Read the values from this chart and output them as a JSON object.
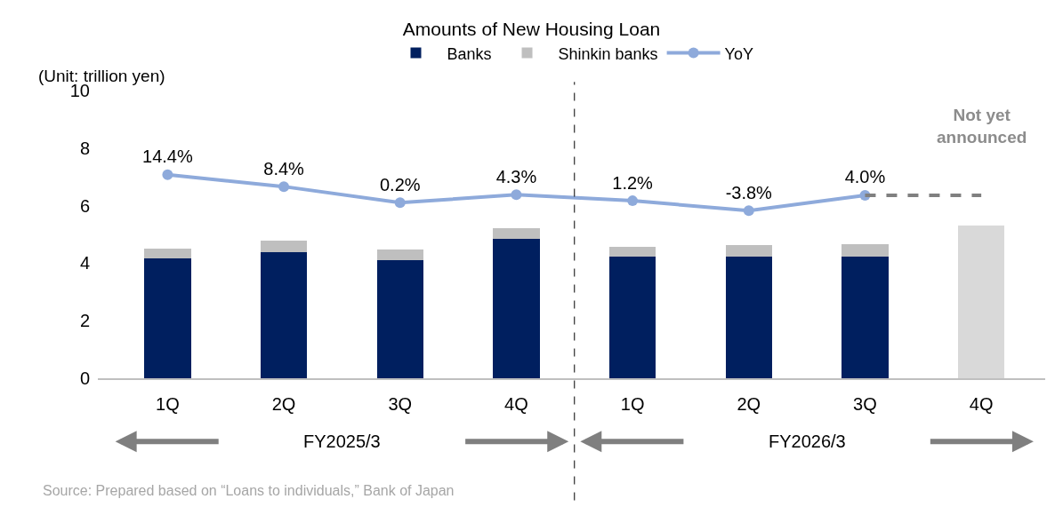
{
  "chart_data": {
    "type": "bar",
    "title": "Amounts of New Housing Loan",
    "ylabel": "(Unit: trillion yen)",
    "categories": [
      "1Q",
      "2Q",
      "3Q",
      "4Q",
      "1Q",
      "2Q",
      "3Q",
      "4Q"
    ],
    "stacked": true,
    "series": [
      {
        "name": "Banks",
        "color": "#001f5f",
        "values": [
          4.16,
          4.39,
          4.11,
          4.84,
          4.22,
          4.22,
          4.22,
          null
        ]
      },
      {
        "name": "Shinkin banks",
        "color": "#bfbfbf",
        "values": [
          0.34,
          0.4,
          0.37,
          0.38,
          0.35,
          0.4,
          0.44,
          null
        ]
      },
      {
        "color": "#d9d9d9",
        "values": [
          null,
          null,
          null,
          null,
          null,
          null,
          null,
          5.31
        ]
      },
      {
        "name": "YoY",
        "type": "line",
        "axis": "y2",
        "color": "#8eaadb",
        "marker": "circle",
        "values": [
          14.4,
          8.4,
          0.2,
          4.3,
          1.2,
          -3.8,
          4.0,
          null
        ],
        "value_labels": [
          "14.4%",
          "8.4%",
          "0.2%",
          "4.3%",
          "1.2%",
          "-3.8%",
          "4.0%",
          null
        ]
      },
      {
        "type": "line",
        "axis": "y2",
        "color": "#808080",
        "line_style": "dashed",
        "marker": "none",
        "values": [
          null,
          null,
          null,
          null,
          null,
          null,
          4.0,
          4.0
        ]
      }
    ],
    "ylim": [
      0,
      10
    ],
    "yticks": [
      0,
      2,
      4,
      6,
      8,
      10
    ],
    "grid": false,
    "legend": "top",
    "annotations": [
      "Not yet announced",
      "FY2025/3",
      "FY2026/3",
      "Source: Prepared based on “Loans to individuals,” Bank of Japan"
    ]
  }
}
